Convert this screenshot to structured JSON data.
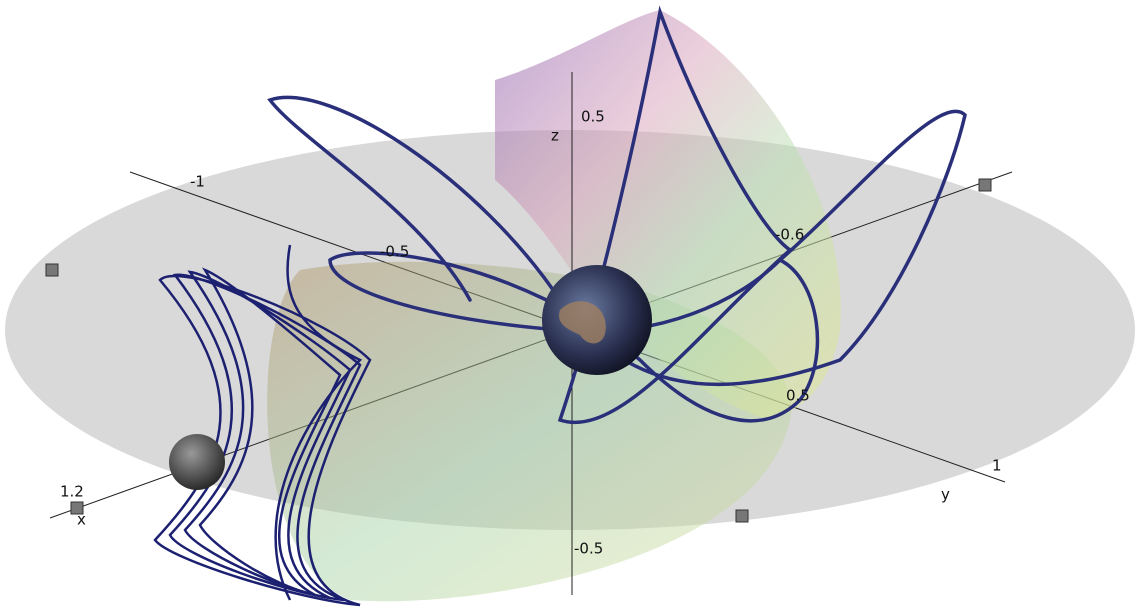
{
  "axes": {
    "x": {
      "label": "x",
      "ticks": [
        "1.2",
        "-0.6"
      ]
    },
    "y": {
      "label": "y",
      "ticks": [
        "-1",
        "-0.5",
        "0.5",
        "1"
      ]
    },
    "z": {
      "label": "z",
      "ticks": [
        "0.5",
        "-0.5"
      ]
    }
  }
}
